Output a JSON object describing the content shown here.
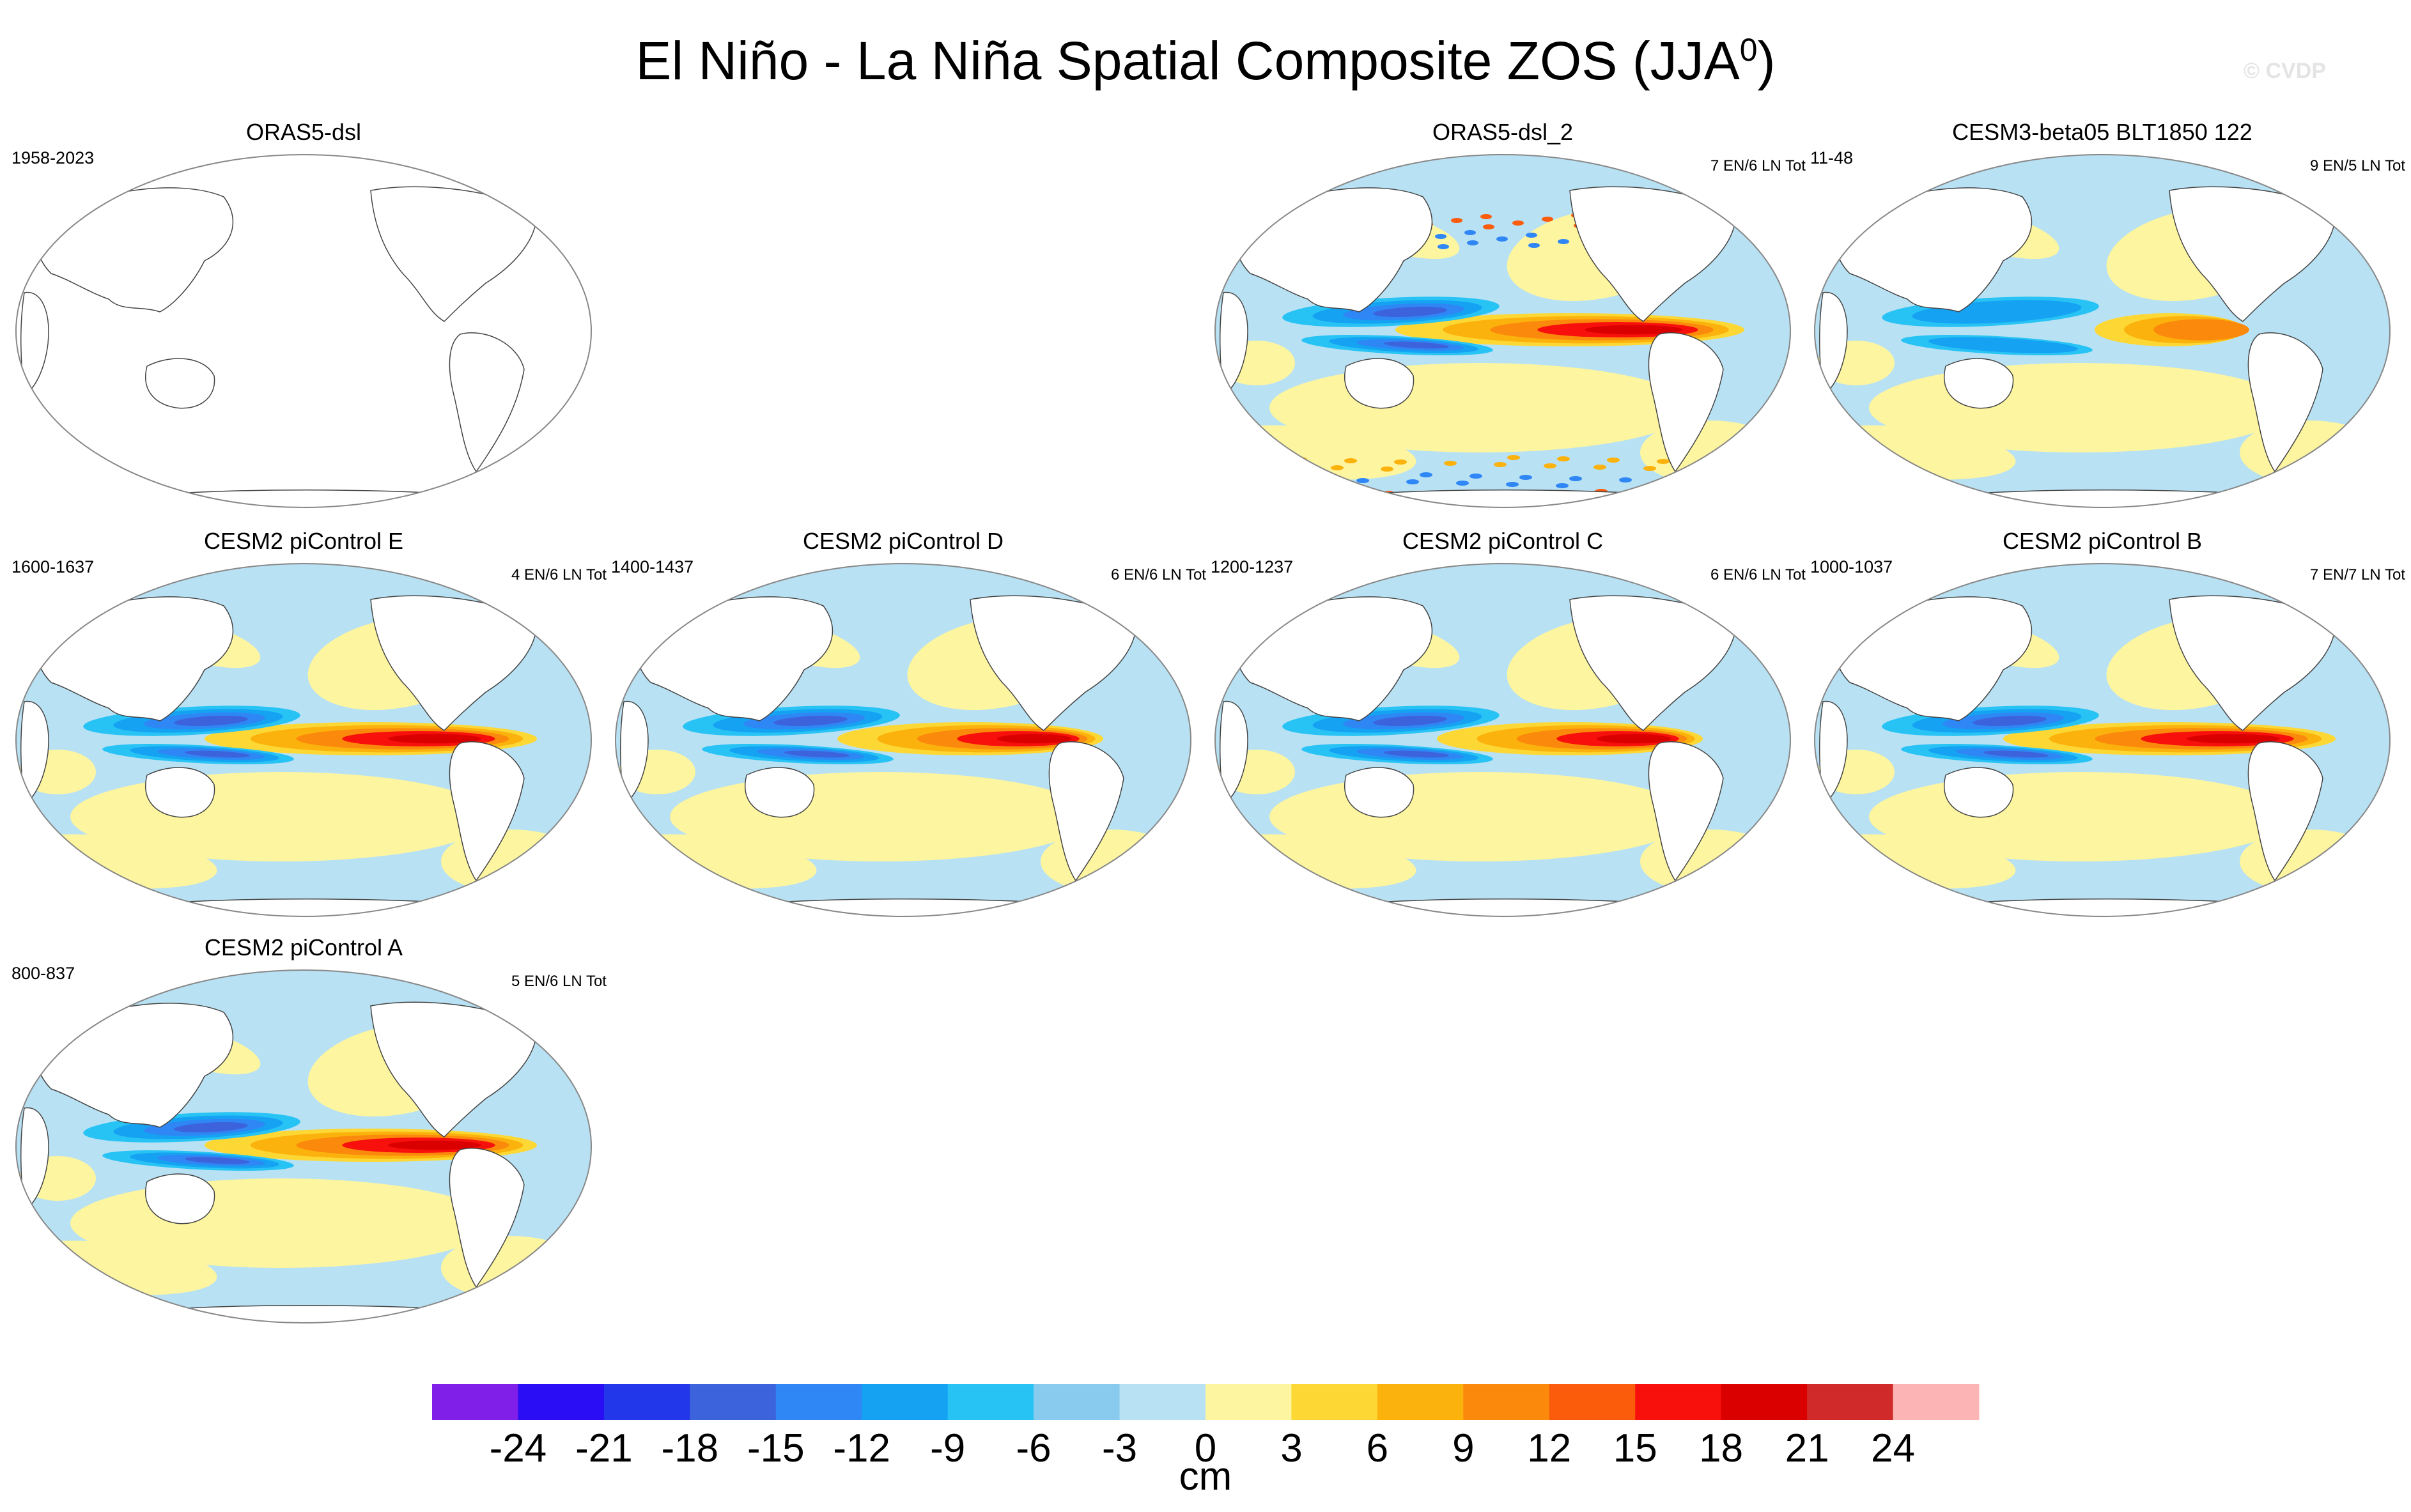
{
  "figure": {
    "title": "El Niño - La Niña Spatial Composite ZOS (JJA",
    "title_sup": "0",
    "title_close": ")",
    "credit": "© CVDP"
  },
  "colorbar": {
    "units": "cm",
    "labels": [
      "-24",
      "-21",
      "-18",
      "-15",
      "-12",
      "-9",
      "-6",
      "-3",
      "0",
      "3",
      "6",
      "9",
      "12",
      "15",
      "18",
      "21",
      "24"
    ],
    "colors": [
      "#7f1fe8",
      "#2a0cf5",
      "#2236ea",
      "#3c63db",
      "#2f86f5",
      "#15a2f2",
      "#28c3f5",
      "#88cbef",
      "#b8e1f3",
      "#fdf5a0",
      "#fdd835",
      "#fcb20c",
      "#fb8a0c",
      "#fb5c0c",
      "#f7100c",
      "#db0000",
      "#d12a2a",
      "#fdb4b4"
    ]
  },
  "panels": [
    {
      "title": "ORAS5-dsl",
      "left": "1958-2023",
      "right": "",
      "empty": true,
      "pattern": "obs"
    },
    {
      "title": "ORAS5-dsl_2",
      "left": "",
      "right": "7 EN/6 LN Tot",
      "pattern": "noisy"
    },
    {
      "title": "CESM3-beta05 BLT1850 122",
      "left": "11-48",
      "right": "9 EN/5 LN Tot",
      "pattern": "weak"
    },
    {
      "title": "CESM2 piControl E",
      "left": "1600-1637",
      "right": "4 EN/6 LN Tot",
      "pattern": "strong"
    },
    {
      "title": "CESM2 piControl D",
      "left": "1400-1437",
      "right": "6 EN/6 LN Tot",
      "pattern": "medium"
    },
    {
      "title": "CESM2 piControl C",
      "left": "1200-1237",
      "right": "6 EN/6 LN Tot",
      "pattern": "medium"
    },
    {
      "title": "CESM2 piControl B",
      "left": "1000-1037",
      "right": "7 EN/7 LN Tot",
      "pattern": "strong"
    },
    {
      "title": "CESM2 piControl A",
      "left": "800-837",
      "right": "5 EN/6 LN Tot",
      "pattern": "strong"
    }
  ],
  "chart_data": {
    "type": "heatmap",
    "title": "El Niño - La Niña Spatial Composite ZOS (JJA0)",
    "variable": "ZOS",
    "units": "cm",
    "contour_levels": [
      -24,
      -21,
      -18,
      -15,
      -12,
      -9,
      -6,
      -3,
      0,
      3,
      6,
      9,
      12,
      15,
      18,
      21,
      24
    ],
    "projection": "Robinson, Pacific-centered",
    "panels": [
      {
        "name": "ORAS5-dsl",
        "period": "1958-2023",
        "composite": "",
        "field": "empty"
      },
      {
        "name": "ORAS5-dsl_2",
        "period": "",
        "composite": "7 EN/6 LN Tot",
        "eq_east_pacific_max": 24,
        "west_pacific_min": -21
      },
      {
        "name": "CESM3-beta05 BLT1850 122",
        "period": "11-48",
        "composite": "9 EN/5 LN Tot",
        "eq_east_pacific_max": 9,
        "west_pacific_min": -6
      },
      {
        "name": "CESM2 piControl E",
        "period": "1600-1637",
        "composite": "4 EN/6 LN Tot",
        "eq_east_pacific_max": 21,
        "west_pacific_min": -15
      },
      {
        "name": "CESM2 piControl D",
        "period": "1400-1437",
        "composite": "6 EN/6 LN Tot",
        "eq_east_pacific_max": 15,
        "west_pacific_min": -15
      },
      {
        "name": "CESM2 piControl C",
        "period": "1200-1237",
        "composite": "6 EN/6 LN Tot",
        "eq_east_pacific_max": 15,
        "west_pacific_min": -12
      },
      {
        "name": "CESM2 piControl B",
        "period": "1000-1037",
        "composite": "7 EN/7 LN Tot",
        "eq_east_pacific_max": 18,
        "west_pacific_min": -15
      },
      {
        "name": "CESM2 piControl A",
        "period": "800-837",
        "composite": "5 EN/6 LN Tot",
        "eq_east_pacific_max": 21,
        "west_pacific_min": -12
      }
    ]
  }
}
